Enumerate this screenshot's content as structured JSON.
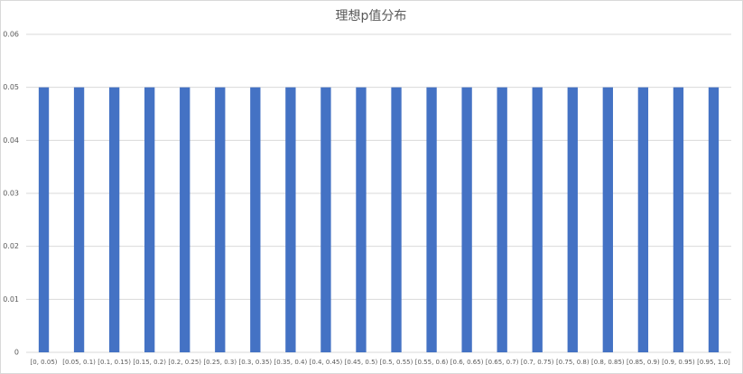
{
  "chart_data": {
    "type": "bar",
    "title": "理想p值分布",
    "categories": [
      "[0, 0.05)",
      "[0.05, 0.1)",
      "[0.1, 0.15)",
      "[0.15, 0.2)",
      "[0.2, 0.25)",
      "[0.25, 0.3)",
      "[0.3, 0.35)",
      "[0.35, 0.4)",
      "[0.4, 0.45)",
      "[0.45, 0.5)",
      "[0.5, 0.55)",
      "[0.55, 0.6)",
      "[0.6, 0.65)",
      "[0.65, 0.7)",
      "[0.7, 0.75)",
      "[0.75, 0.8)",
      "[0.8, 0.85)",
      "[0.85, 0.9)",
      "[0.9, 0.95)",
      "[0.95, 1.0]"
    ],
    "values": [
      0.05,
      0.05,
      0.05,
      0.05,
      0.05,
      0.05,
      0.05,
      0.05,
      0.05,
      0.05,
      0.05,
      0.05,
      0.05,
      0.05,
      0.05,
      0.05,
      0.05,
      0.05,
      0.05,
      0.05
    ],
    "color": "#4472c4",
    "ylim": [
      0,
      0.06
    ],
    "yticks": [
      0,
      0.01,
      0.02,
      0.03,
      0.04,
      0.05,
      0.06
    ],
    "grid": true
  }
}
